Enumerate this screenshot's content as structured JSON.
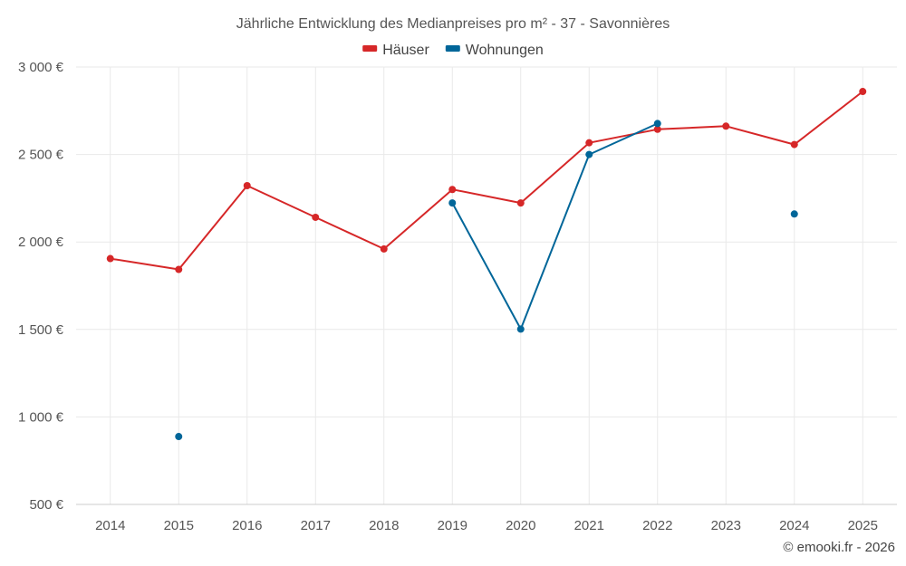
{
  "chart_data": {
    "type": "line",
    "title": "Jährliche Entwicklung des Medianpreises pro m² - 37 - Savonnières",
    "categories": [
      "2014",
      "2015",
      "2016",
      "2017",
      "2018",
      "2019",
      "2020",
      "2021",
      "2022",
      "2023",
      "2024",
      "2025"
    ],
    "ylim": [
      500,
      3000
    ],
    "yticks": [
      500,
      1000,
      1500,
      2000,
      2500,
      3000
    ],
    "ytick_labels": [
      "500 €",
      "1 000 €",
      "1 500 €",
      "2 000 €",
      "2 500 €",
      "3 000 €"
    ],
    "xlabel": "",
    "ylabel": "",
    "grid": true,
    "legend_position": "top-center",
    "series": [
      {
        "name": "Häuser",
        "color": "#d62728",
        "values": [
          1905,
          1843,
          2322,
          2141,
          1960,
          2300,
          2223,
          2567,
          2644,
          2662,
          2557,
          2860
        ]
      },
      {
        "name": "Wohnungen",
        "color": "#006699",
        "values": [
          null,
          888,
          null,
          null,
          null,
          2223,
          1502,
          2500,
          2677,
          null,
          2160,
          null
        ]
      }
    ]
  },
  "credit": "© emooki.fr - 2026"
}
